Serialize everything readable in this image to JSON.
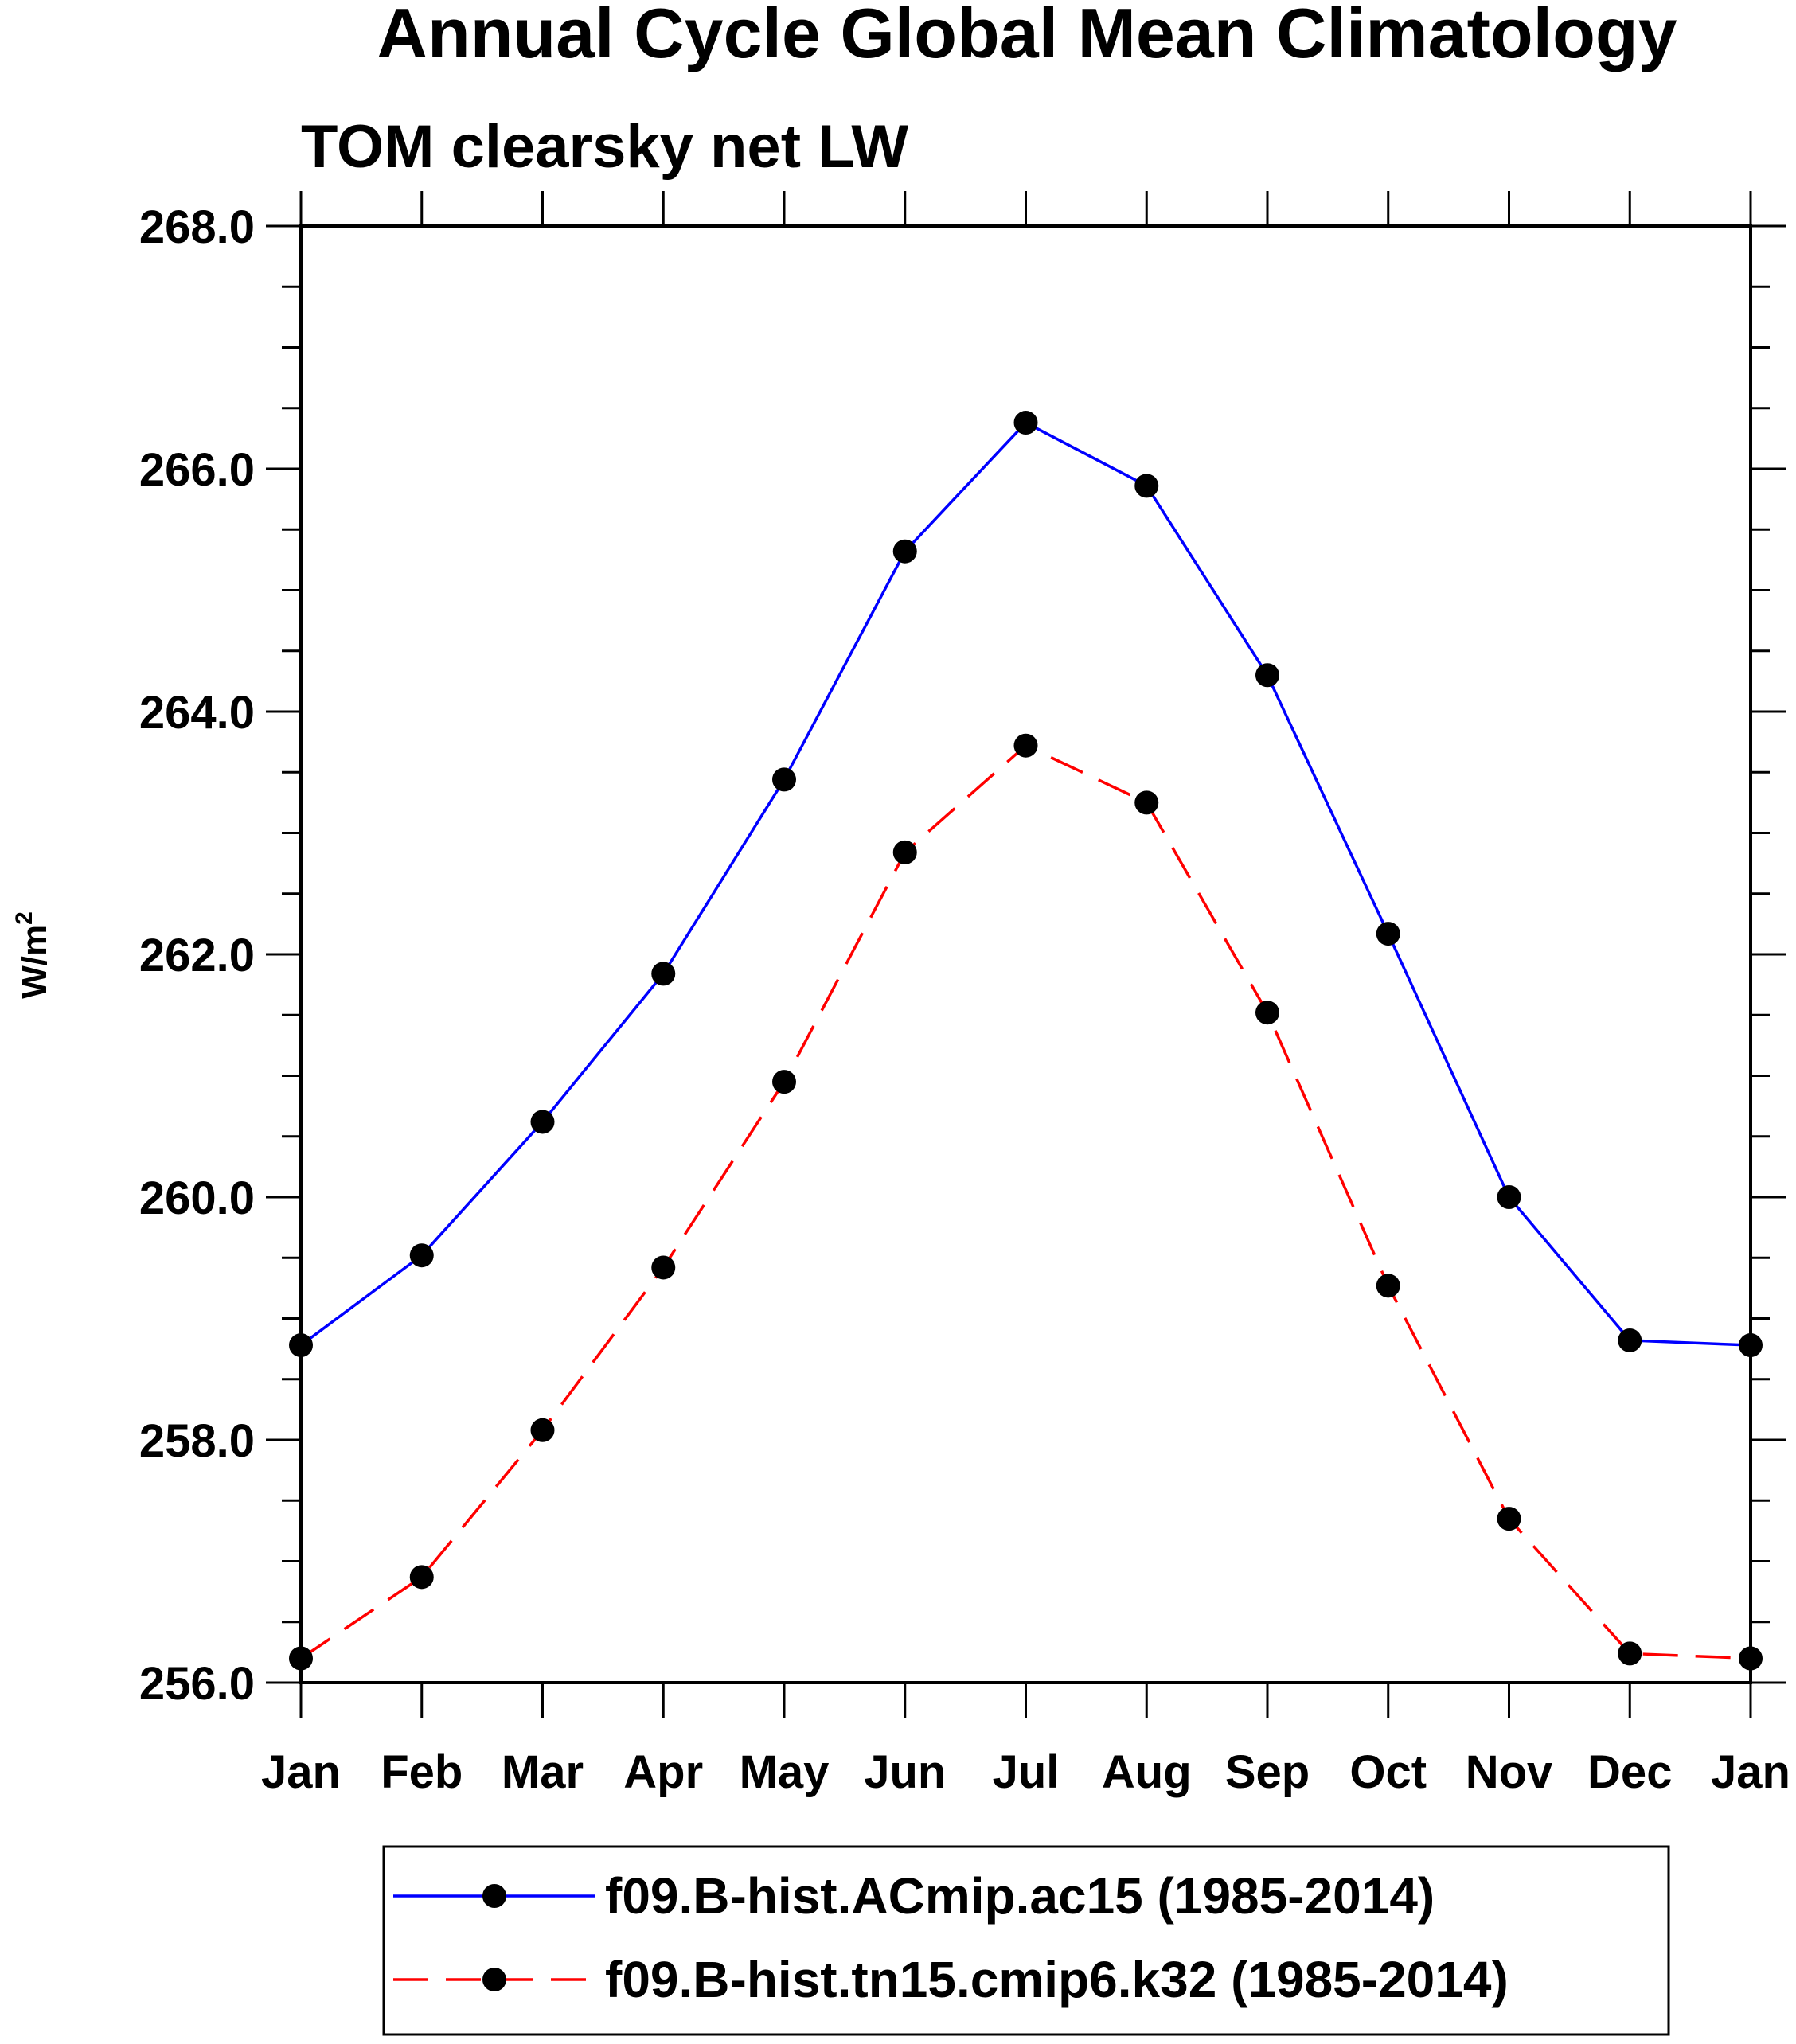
{
  "chart_data": {
    "type": "line",
    "title": "Annual Cycle Global Mean Climatology",
    "subtitle": "TOM clearsky net LW",
    "ylabel": "W/m",
    "ylabel_superscript": "2",
    "categories": [
      "Jan",
      "Feb",
      "Mar",
      "Apr",
      "May",
      "Jun",
      "Jul",
      "Aug",
      "Sep",
      "Oct",
      "Nov",
      "Dec",
      "Jan"
    ],
    "ylim": [
      256.0,
      268.0
    ],
    "yticks": [
      256.0,
      258.0,
      260.0,
      262.0,
      264.0,
      266.0,
      268.0
    ],
    "ytick_labels": [
      "256.0",
      "258.0",
      "260.0",
      "262.0",
      "264.0",
      "266.0",
      "268.0"
    ],
    "y_minor_step": 0.5,
    "series": [
      {
        "name": "f09.B-hist.ACmip.ac15 (1985-2014)",
        "color": "#0000ff",
        "dash": "solid",
        "marker_color": "#000000",
        "values": [
          258.78,
          259.52,
          260.62,
          261.84,
          263.44,
          265.32,
          266.38,
          265.86,
          264.3,
          262.17,
          260.0,
          258.82,
          258.78
        ]
      },
      {
        "name": "f09.B-hist.tn15.cmip6.k32 (1985-2014)",
        "color": "#ff0000",
        "dash": "dashed",
        "marker_color": "#000000",
        "values": [
          256.2,
          256.87,
          258.08,
          259.42,
          260.95,
          262.84,
          263.72,
          263.25,
          261.52,
          259.27,
          257.35,
          256.24,
          256.2
        ]
      }
    ]
  }
}
